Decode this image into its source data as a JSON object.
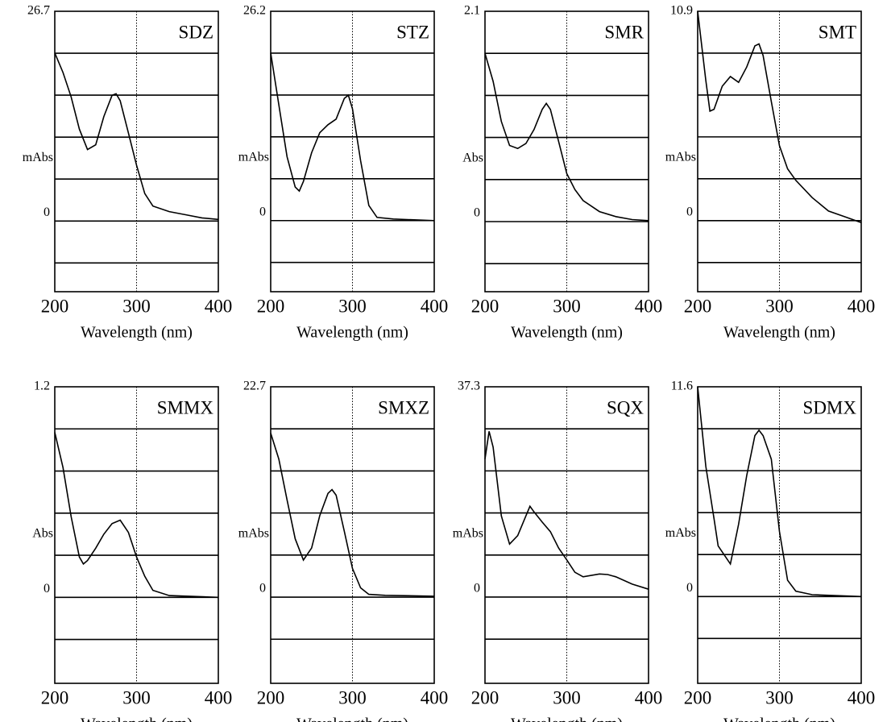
{
  "chart_data": [
    {
      "type": "line",
      "title": "SDZ",
      "ylabel": "mAbs",
      "xlabel": "Wavelength (nm)",
      "xlim": [
        200,
        400
      ],
      "xticks": [
        200,
        300,
        400
      ],
      "xgrid": true,
      "ylim": [
        -9.0,
        26.7
      ],
      "yticks": [
        0,
        26.7
      ],
      "grid": true,
      "x": [
        200,
        210,
        220,
        230,
        240,
        250,
        260,
        270,
        275,
        280,
        290,
        300,
        310,
        320,
        340,
        360,
        380,
        400
      ],
      "series": [
        {
          "color": "#000000",
          "values": [
            21.4,
            18.9,
            15.8,
            11.7,
            9.1,
            9.7,
            13.3,
            16.0,
            16.2,
            15.3,
            11.2,
            7.1,
            3.5,
            1.9,
            1.2,
            0.8,
            0.4,
            0.2
          ]
        }
      ]
    },
    {
      "type": "line",
      "title": "STZ",
      "ylabel": "mAbs",
      "xlabel": "Wavelength (nm)",
      "xlim": [
        200,
        400
      ],
      "xticks": [
        200,
        300,
        400
      ],
      "xgrid": true,
      "ylim": [
        -8.9,
        26.2
      ],
      "yticks": [
        0,
        26.2
      ],
      "grid": true,
      "x": [
        200,
        210,
        220,
        230,
        235,
        240,
        250,
        260,
        270,
        280,
        290,
        295,
        300,
        310,
        320,
        330,
        350,
        400
      ],
      "series": [
        {
          "color": "#000000",
          "values": [
            21.0,
            14.5,
            8.0,
            4.2,
            3.7,
            4.9,
            8.5,
            11.0,
            12.0,
            12.7,
            15.3,
            15.7,
            14.0,
            7.5,
            1.9,
            0.4,
            0.2,
            0.0
          ]
        }
      ]
    },
    {
      "type": "line",
      "title": "SMR",
      "ylabel": "Abs",
      "xlabel": "Wavelength (nm)",
      "xlim": [
        200,
        400
      ],
      "xticks": [
        200,
        300,
        400
      ],
      "xgrid": true,
      "ylim": [
        -0.7,
        2.1
      ],
      "yticks": [
        0,
        2.1
      ],
      "grid": true,
      "x": [
        200,
        210,
        220,
        230,
        240,
        250,
        260,
        270,
        275,
        280,
        290,
        300,
        310,
        320,
        340,
        360,
        380,
        400
      ],
      "series": [
        {
          "color": "#000000",
          "values": [
            1.68,
            1.4,
            1.0,
            0.76,
            0.73,
            0.78,
            0.92,
            1.12,
            1.18,
            1.12,
            0.8,
            0.48,
            0.32,
            0.21,
            0.1,
            0.05,
            0.02,
            0.01
          ]
        }
      ]
    },
    {
      "type": "line",
      "title": "SMT",
      "ylabel": "mAbs",
      "xlabel": "Wavelength (nm)",
      "xlim": [
        200,
        400
      ],
      "xticks": [
        200,
        300,
        400
      ],
      "xgrid": true,
      "ylim": [
        -3.7,
        10.9
      ],
      "yticks": [
        0,
        10.9
      ],
      "grid": true,
      "x": [
        200,
        210,
        215,
        220,
        230,
        240,
        250,
        260,
        270,
        275,
        280,
        290,
        300,
        310,
        320,
        340,
        360,
        380,
        400
      ],
      "series": [
        {
          "color": "#000000",
          "values": [
            10.9,
            7.3,
            5.7,
            5.8,
            7.0,
            7.5,
            7.2,
            8.0,
            9.1,
            9.2,
            8.6,
            6.2,
            3.9,
            2.7,
            2.1,
            1.2,
            0.5,
            0.2,
            -0.1
          ]
        }
      ]
    },
    {
      "type": "line",
      "title": "SMMX",
      "ylabel": "Abs",
      "xlabel": "Wavelength (nm)",
      "xlim": [
        200,
        400
      ],
      "xticks": [
        200,
        300,
        400
      ],
      "xgrid": true,
      "ylim": [
        -0.49,
        1.2
      ],
      "yticks": [
        0,
        1.2
      ],
      "grid": true,
      "x": [
        200,
        210,
        220,
        230,
        235,
        240,
        250,
        260,
        270,
        280,
        290,
        300,
        310,
        320,
        340,
        400
      ],
      "series": [
        {
          "color": "#000000",
          "values": [
            0.94,
            0.74,
            0.46,
            0.23,
            0.19,
            0.21,
            0.28,
            0.36,
            0.42,
            0.44,
            0.37,
            0.23,
            0.12,
            0.04,
            0.01,
            0.0
          ]
        }
      ]
    },
    {
      "type": "line",
      "title": "SMXZ",
      "ylabel": "mAbs",
      "xlabel": "Wavelength (nm)",
      "xlim": [
        200,
        400
      ],
      "xticks": [
        200,
        300,
        400
      ],
      "xgrid": true,
      "ylim": [
        -9.3,
        22.7
      ],
      "yticks": [
        0,
        22.7
      ],
      "grid": true,
      "x": [
        200,
        210,
        220,
        230,
        240,
        250,
        260,
        270,
        275,
        280,
        290,
        300,
        310,
        320,
        340,
        400
      ],
      "series": [
        {
          "color": "#000000",
          "values": [
            17.7,
            14.9,
            10.5,
            6.3,
            4.0,
            5.3,
            8.8,
            11.2,
            11.6,
            11.0,
            7.1,
            3.1,
            1.0,
            0.3,
            0.2,
            0.1
          ]
        }
      ]
    },
    {
      "type": "line",
      "title": "SQX",
      "ylabel": "mAbs",
      "xlabel": "Wavelength (nm)",
      "xlim": [
        200,
        400
      ],
      "xticks": [
        200,
        300,
        400
      ],
      "xgrid": true,
      "ylim": [
        -15.3,
        37.3
      ],
      "yticks": [
        0,
        37.3
      ],
      "grid": true,
      "x": [
        200,
        205,
        210,
        220,
        230,
        240,
        250,
        255,
        260,
        270,
        280,
        290,
        300,
        310,
        320,
        340,
        350,
        360,
        380,
        400
      ],
      "series": [
        {
          "color": "#000000",
          "values": [
            24.5,
            29.4,
            26.6,
            14.4,
            9.4,
            10.9,
            14.4,
            16.1,
            15.1,
            13.3,
            11.6,
            8.7,
            6.6,
            4.4,
            3.6,
            4.1,
            4.0,
            3.6,
            2.3,
            1.4
          ]
        }
      ]
    },
    {
      "type": "line",
      "title": "SDMX",
      "ylabel": "mAbs",
      "xlabel": "Wavelength (nm)",
      "xlim": [
        200,
        400
      ],
      "xticks": [
        200,
        300,
        400
      ],
      "xgrid": true,
      "ylim": [
        -4.8,
        11.6
      ],
      "yticks": [
        0,
        11.6
      ],
      "grid": true,
      "x": [
        200,
        210,
        220,
        225,
        240,
        250,
        260,
        270,
        275,
        280,
        290,
        300,
        310,
        320,
        340,
        400
      ],
      "series": [
        {
          "color": "#000000",
          "values": [
            11.6,
            7.2,
            4.3,
            2.8,
            1.8,
            4.0,
            6.7,
            8.9,
            9.2,
            8.9,
            7.6,
            3.6,
            0.9,
            0.3,
            0.1,
            0.0
          ]
        }
      ]
    }
  ]
}
